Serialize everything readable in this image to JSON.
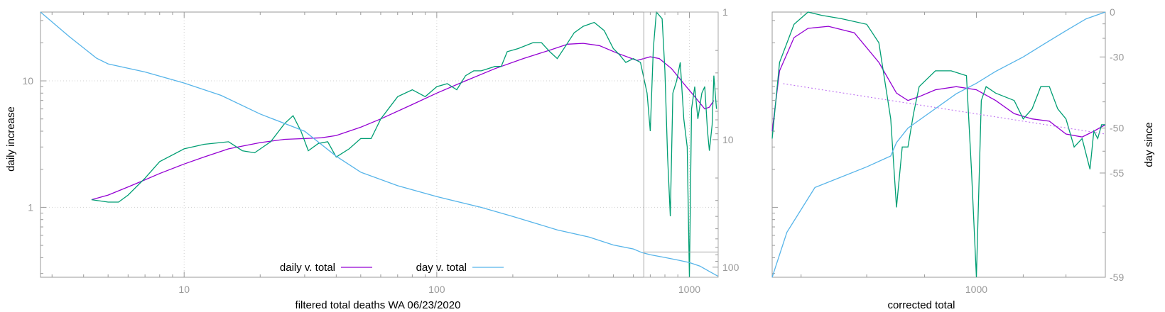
{
  "chart_data": [
    {
      "type": "line",
      "title": "",
      "xlabel": "filtered total deaths WA 06/23/2020",
      "ylabel": "daily increase",
      "y2label": "",
      "x_scale": "log",
      "y_scale": "log",
      "xlim": [
        2.7,
        1300
      ],
      "ylim": [
        0.28,
        35
      ],
      "y2lim": [
        1,
        120
      ],
      "y2_reversed": true,
      "grid": true,
      "legend_position": "bottom-center",
      "x_ticks": [
        "10",
        "100",
        "1000"
      ],
      "y_ticks": [
        "1",
        "10"
      ],
      "y2_ticks": [
        "1",
        "10",
        "100"
      ],
      "legend": [
        {
          "label": "daily v. total",
          "color": "#9400d3"
        },
        {
          "label": "day v. total",
          "color": "#56b4e9"
        }
      ],
      "series": [
        {
          "color": "#9400d3",
          "axis": "y",
          "points": [
            [
              4.3,
              1.15
            ],
            [
              5,
              1.25
            ],
            [
              6,
              1.45
            ],
            [
              7,
              1.65
            ],
            [
              8,
              1.85
            ],
            [
              10,
              2.2
            ],
            [
              12,
              2.5
            ],
            [
              15,
              2.9
            ],
            [
              20,
              3.25
            ],
            [
              25,
              3.45
            ],
            [
              30,
              3.5
            ],
            [
              35,
              3.55
            ],
            [
              40,
              3.7
            ],
            [
              50,
              4.3
            ],
            [
              60,
              5
            ],
            [
              80,
              6.5
            ],
            [
              100,
              8
            ],
            [
              130,
              10
            ],
            [
              170,
              12.5
            ],
            [
              220,
              15
            ],
            [
              280,
              17.5
            ],
            [
              330,
              19.5
            ],
            [
              380,
              19.8
            ],
            [
              440,
              19
            ],
            [
              520,
              16.5
            ],
            [
              620,
              14.5
            ],
            [
              700,
              15.5
            ],
            [
              760,
              15
            ],
            [
              850,
              12.5
            ],
            [
              950,
              9.5
            ],
            [
              1050,
              7.5
            ],
            [
              1150,
              6
            ],
            [
              1200,
              6.2
            ],
            [
              1250,
              7
            ]
          ]
        },
        {
          "color": "#009e73",
          "axis": "y",
          "points": [
            [
              4.3,
              1.15
            ],
            [
              5,
              1.1
            ],
            [
              5.5,
              1.1
            ],
            [
              6,
              1.25
            ],
            [
              7,
              1.7
            ],
            [
              8,
              2.3
            ],
            [
              10,
              2.9
            ],
            [
              12,
              3.15
            ],
            [
              15,
              3.3
            ],
            [
              17,
              2.8
            ],
            [
              19,
              2.7
            ],
            [
              22,
              3.3
            ],
            [
              25,
              4.6
            ],
            [
              27,
              5.3
            ],
            [
              29,
              4
            ],
            [
              31,
              2.8
            ],
            [
              34,
              3.2
            ],
            [
              37,
              3.3
            ],
            [
              40,
              2.5
            ],
            [
              45,
              2.9
            ],
            [
              50,
              3.5
            ],
            [
              55,
              3.5
            ],
            [
              60,
              5
            ],
            [
              70,
              7.5
            ],
            [
              80,
              8.5
            ],
            [
              90,
              7.5
            ],
            [
              100,
              9
            ],
            [
              110,
              9.5
            ],
            [
              120,
              8.5
            ],
            [
              130,
              11
            ],
            [
              140,
              12
            ],
            [
              150,
              12
            ],
            [
              170,
              13
            ],
            [
              180,
              13
            ],
            [
              190,
              17
            ],
            [
              210,
              18
            ],
            [
              240,
              20
            ],
            [
              260,
              20
            ],
            [
              280,
              17
            ],
            [
              300,
              15
            ],
            [
              330,
              20
            ],
            [
              350,
              24
            ],
            [
              380,
              27
            ],
            [
              420,
              29
            ],
            [
              460,
              25
            ],
            [
              500,
              18
            ],
            [
              530,
              16
            ],
            [
              560,
              14
            ],
            [
              600,
              15
            ],
            [
              640,
              14
            ],
            [
              680,
              8
            ],
            [
              700,
              4
            ],
            [
              720,
              18
            ],
            [
              740,
              35
            ],
            [
              780,
              31
            ],
            [
              800,
              12
            ],
            [
              820,
              2.5
            ],
            [
              840,
              0.85
            ],
            [
              860,
              8
            ],
            [
              890,
              10
            ],
            [
              920,
              14
            ],
            [
              950,
              5
            ],
            [
              980,
              3
            ],
            [
              1000,
              0.28
            ],
            [
              1020,
              6
            ],
            [
              1050,
              9
            ],
            [
              1080,
              5
            ],
            [
              1120,
              8
            ],
            [
              1150,
              9
            ],
            [
              1180,
              4
            ],
            [
              1200,
              2.8
            ],
            [
              1230,
              4.5
            ],
            [
              1250,
              11
            ],
            [
              1280,
              6
            ]
          ]
        },
        {
          "color": "#56b4e9",
          "axis": "y2",
          "points": [
            [
              2.7,
              1
            ],
            [
              3.5,
              1.55
            ],
            [
              4.5,
              2.3
            ],
            [
              5,
              2.55
            ],
            [
              7,
              2.95
            ],
            [
              10,
              3.6
            ],
            [
              14,
              4.5
            ],
            [
              20,
              6.3
            ],
            [
              30,
              8.6
            ],
            [
              40,
              13.5
            ],
            [
              50,
              18
            ],
            [
              70,
              23
            ],
            [
              100,
              28
            ],
            [
              150,
              34
            ],
            [
              200,
              40
            ],
            [
              300,
              51
            ],
            [
              400,
              58
            ],
            [
              500,
              67
            ],
            [
              600,
              72
            ],
            [
              650,
              77
            ],
            [
              700,
              80
            ],
            [
              800,
              84
            ],
            [
              900,
              88
            ],
            [
              1000,
              92
            ],
            [
              1100,
              98
            ],
            [
              1200,
              108
            ],
            [
              1300,
              118
            ]
          ]
        }
      ],
      "annotations": [
        {
          "type": "zoom-box",
          "x_from": 660,
          "x_to": 1300,
          "y_from": 0.28,
          "y_to": 35,
          "y2_line": 76
        }
      ]
    },
    {
      "type": "line",
      "title": "",
      "xlabel": "corrected total",
      "ylabel": "",
      "y2label": "day since",
      "x_scale": "log",
      "y_scale": "log",
      "xlim": [
        660,
        1300
      ],
      "ylim": [
        0.28,
        35
      ],
      "y2lim": [
        -59,
        0
      ],
      "y2_scale": "nonlinear",
      "grid": false,
      "x_ticks": [
        "1000"
      ],
      "y2_ticks": [
        "0",
        "-30",
        "-50",
        "-55",
        "-59"
      ],
      "series": [
        {
          "color": "#9400d3",
          "axis": "y",
          "points": [
            [
              660,
              4
            ],
            [
              670,
              12
            ],
            [
              690,
              22
            ],
            [
              710,
              26
            ],
            [
              740,
              27
            ],
            [
              780,
              24
            ],
            [
              820,
              14
            ],
            [
              850,
              8
            ],
            [
              870,
              7
            ],
            [
              890,
              7.5
            ],
            [
              920,
              8.5
            ],
            [
              960,
              9
            ],
            [
              1000,
              8.5
            ],
            [
              1040,
              7
            ],
            [
              1080,
              5.5
            ],
            [
              1120,
              5
            ],
            [
              1160,
              4.8
            ],
            [
              1200,
              3.8
            ],
            [
              1240,
              3.6
            ],
            [
              1270,
              4
            ],
            [
              1300,
              4.5
            ]
          ]
        },
        {
          "color": "#009e73",
          "axis": "y",
          "points": [
            [
              660,
              3.5
            ],
            [
              670,
              14
            ],
            [
              690,
              28
            ],
            [
              710,
              35
            ],
            [
              730,
              33
            ],
            [
              760,
              31
            ],
            [
              800,
              28
            ],
            [
              820,
              20
            ],
            [
              840,
              5
            ],
            [
              850,
              1
            ],
            [
              860,
              3
            ],
            [
              870,
              3
            ],
            [
              880,
              5.5
            ],
            [
              890,
              9
            ],
            [
              920,
              12
            ],
            [
              950,
              12
            ],
            [
              980,
              11
            ],
            [
              990,
              2
            ],
            [
              1000,
              0.28
            ],
            [
              1010,
              7
            ],
            [
              1020,
              9
            ],
            [
              1040,
              8
            ],
            [
              1080,
              7
            ],
            [
              1100,
              5
            ],
            [
              1120,
              6
            ],
            [
              1140,
              9
            ],
            [
              1160,
              9
            ],
            [
              1180,
              6
            ],
            [
              1200,
              5
            ],
            [
              1220,
              3
            ],
            [
              1240,
              3.5
            ],
            [
              1260,
              2
            ],
            [
              1270,
              4
            ],
            [
              1280,
              3.5
            ],
            [
              1290,
              4.5
            ],
            [
              1300,
              4.5
            ]
          ]
        },
        {
          "color": "#56b4e9",
          "axis": "y2",
          "points": [
            [
              660,
              -59
            ],
            [
              680,
              -58
            ],
            [
              720,
              -56
            ],
            [
              800,
              -54.5
            ],
            [
              840,
              -53.5
            ],
            [
              850,
              -52
            ],
            [
              870,
              -50
            ],
            [
              900,
              -48
            ],
            [
              960,
              -43
            ],
            [
              1000,
              -40
            ],
            [
              1040,
              -36
            ],
            [
              1100,
              -30
            ],
            [
              1150,
              -23
            ],
            [
              1200,
              -15
            ],
            [
              1250,
              -6
            ],
            [
              1300,
              0
            ]
          ]
        },
        {
          "color": "#c37bf2",
          "axis": "y",
          "dashed": true,
          "points": [
            [
              675,
              9.5
            ],
            [
              1300,
              3.8
            ]
          ]
        }
      ]
    }
  ]
}
